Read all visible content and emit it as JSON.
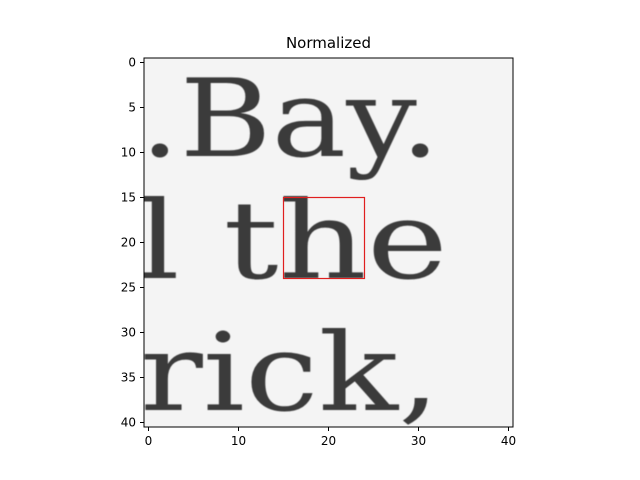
{
  "figure": {
    "title": "Normalized"
  },
  "image_panel": {
    "text_lines": [
      ".Bay.",
      "l the",
      "rick,"
    ],
    "colormap": "gray",
    "x_ticks": [
      "0",
      "10",
      "20",
      "30",
      "40"
    ],
    "y_ticks": [
      "0",
      "5",
      "10",
      "15",
      "20",
      "25",
      "30",
      "35",
      "40"
    ],
    "highlight_box": {
      "x0": 15,
      "y0": 15,
      "x1": 24,
      "y1": 24,
      "color": "#e01f1f"
    }
  }
}
